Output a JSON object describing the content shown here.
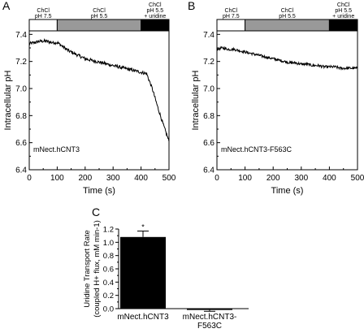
{
  "chart_data": [
    {
      "panel": "A",
      "type": "line",
      "xlabel": "Time (s)",
      "ylabel": "Intracellular pH",
      "xlim": [
        0,
        500
      ],
      "ylim": [
        6.4,
        7.45
      ],
      "xticks": [
        "0",
        "100",
        "200",
        "300",
        "400",
        "500"
      ],
      "yticks": [
        "6.4",
        "6.6",
        "6.8",
        "7.0",
        "7.2",
        "7.4"
      ],
      "annotation": "mNect.hCNT3",
      "conditions": [
        {
          "lines": [
            "ChCl",
            "pH 7.5"
          ],
          "range": [
            0,
            100
          ],
          "fill": "#ffffff"
        },
        {
          "lines": [
            "ChCl",
            "pH 5.5"
          ],
          "range": [
            100,
            400
          ],
          "fill": "#999999"
        },
        {
          "lines": [
            "ChCl",
            "pH 5.5",
            "+ uridine"
          ],
          "range": [
            400,
            500
          ],
          "fill": "#000000"
        }
      ],
      "trace": {
        "x": [
          0,
          20,
          40,
          60,
          80,
          100,
          120,
          140,
          160,
          180,
          200,
          220,
          240,
          260,
          280,
          300,
          320,
          340,
          360,
          380,
          400,
          420,
          440,
          460,
          480,
          500
        ],
        "y": [
          7.33,
          7.34,
          7.35,
          7.35,
          7.34,
          7.34,
          7.31,
          7.28,
          7.26,
          7.24,
          7.22,
          7.21,
          7.2,
          7.19,
          7.18,
          7.17,
          7.16,
          7.15,
          7.14,
          7.13,
          7.12,
          7.11,
          7.0,
          6.86,
          6.73,
          6.61
        ],
        "noise": 0.012
      }
    },
    {
      "panel": "B",
      "type": "line",
      "xlabel": "Time (s)",
      "ylabel": "Intracellular pH",
      "xlim": [
        0,
        500
      ],
      "ylim": [
        6.4,
        7.45
      ],
      "xticks": [
        "0",
        "100",
        "200",
        "300",
        "400",
        "500"
      ],
      "yticks": [
        "6.4",
        "6.6",
        "6.8",
        "7.0",
        "7.2",
        "7.4"
      ],
      "annotation": "mNect.hCNT3-F563C",
      "conditions": [
        {
          "lines": [
            "ChCl",
            "pH 7.5"
          ],
          "range": [
            0,
            100
          ],
          "fill": "#ffffff"
        },
        {
          "lines": [
            "ChCl",
            "pH 5.5"
          ],
          "range": [
            100,
            400
          ],
          "fill": "#999999"
        },
        {
          "lines": [
            "ChCl",
            "pH 5.5",
            "+ uridine"
          ],
          "range": [
            400,
            500
          ],
          "fill": "#000000"
        }
      ],
      "trace": {
        "x": [
          0,
          20,
          40,
          60,
          80,
          100,
          120,
          140,
          160,
          180,
          200,
          220,
          240,
          260,
          280,
          300,
          320,
          340,
          360,
          380,
          400,
          420,
          440,
          460,
          480,
          500
        ],
        "y": [
          7.29,
          7.3,
          7.29,
          7.29,
          7.28,
          7.27,
          7.26,
          7.25,
          7.24,
          7.23,
          7.22,
          7.21,
          7.2,
          7.19,
          7.19,
          7.18,
          7.18,
          7.17,
          7.17,
          7.16,
          7.16,
          7.16,
          7.15,
          7.15,
          7.15,
          7.15
        ],
        "noise": 0.01
      }
    },
    {
      "panel": "C",
      "type": "bar",
      "ylabel_line1": "Uridine Transport Rate",
      "ylabel_line2": "(coupled H+ flux, mM min-1)",
      "ylim": [
        0,
        1.2
      ],
      "yticks": [
        "0.0",
        "0.2",
        "0.4",
        "0.6",
        "0.8",
        "1.0",
        "1.2"
      ],
      "categories": [
        [
          "mNect.hCNT3"
        ],
        [
          "mNect.hCNT3-",
          "F563C"
        ]
      ],
      "values": [
        1.08,
        -0.02
      ],
      "errors": [
        0.09,
        0.02
      ],
      "significance": [
        "*",
        ""
      ],
      "bar_color": "#000000"
    }
  ]
}
